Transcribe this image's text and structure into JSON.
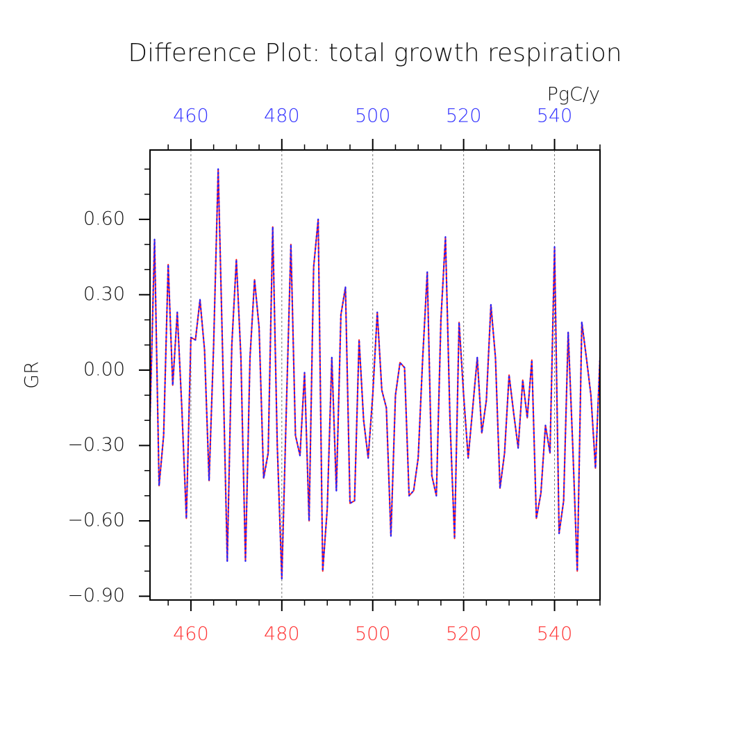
{
  "chart_data": {
    "type": "line",
    "title": "Difference Plot: total growth respiration",
    "units": "PgC/y",
    "y_label": "GR",
    "x": [
      451,
      452,
      453,
      454,
      455,
      456,
      457,
      458,
      459,
      460,
      461,
      462,
      463,
      464,
      465,
      466,
      467,
      468,
      469,
      470,
      471,
      472,
      473,
      474,
      475,
      476,
      477,
      478,
      479,
      480,
      481,
      482,
      483,
      484,
      485,
      486,
      487,
      488,
      489,
      490,
      491,
      492,
      493,
      494,
      495,
      496,
      497,
      498,
      499,
      500,
      501,
      502,
      503,
      504,
      505,
      506,
      507,
      508,
      509,
      510,
      511,
      512,
      513,
      514,
      515,
      516,
      517,
      518,
      519,
      520,
      521,
      522,
      523,
      524,
      525,
      526,
      527,
      528,
      529,
      530,
      531,
      532,
      533,
      534,
      535,
      536,
      537,
      538,
      539,
      540,
      541,
      542,
      543,
      544,
      545,
      546,
      547,
      548,
      549,
      550
    ],
    "series": [
      {
        "color": "#ff2020",
        "dash": "solid",
        "values": [
          -0.2,
          0.52,
          -0.46,
          -0.26,
          0.42,
          -0.06,
          0.23,
          -0.15,
          -0.59,
          0.13,
          0.12,
          0.28,
          0.08,
          -0.44,
          0.1,
          0.8,
          0.05,
          -0.76,
          0.1,
          0.44,
          0.05,
          -0.76,
          0.05,
          0.36,
          0.17,
          -0.43,
          -0.33,
          0.57,
          -0.3,
          -0.83,
          -0.15,
          0.5,
          -0.26,
          -0.34,
          -0.01,
          -0.6,
          0.41,
          0.6,
          -0.8,
          -0.55,
          0.05,
          -0.48,
          0.22,
          0.33,
          -0.53,
          -0.52,
          0.12,
          -0.2,
          -0.35,
          -0.1,
          0.23,
          -0.08,
          -0.15,
          -0.66,
          -0.1,
          0.03,
          0.01,
          -0.5,
          -0.48,
          -0.35,
          0.05,
          0.39,
          -0.42,
          -0.5,
          0.2,
          0.53,
          -0.2,
          -0.67,
          0.19,
          -0.1,
          -0.35,
          -0.15,
          0.05,
          -0.25,
          -0.12,
          0.26,
          0.05,
          -0.47,
          -0.33,
          -0.02,
          -0.17,
          -0.31,
          -0.04,
          -0.19,
          0.04,
          -0.59,
          -0.49,
          -0.22,
          -0.33,
          0.49,
          -0.65,
          -0.52,
          0.15,
          -0.3,
          -0.8,
          0.19,
          0.05,
          -0.1,
          -0.39,
          0.05
        ]
      },
      {
        "color": "#2020ff",
        "dash": "dotted",
        "values": [
          -0.2,
          0.52,
          -0.46,
          -0.26,
          0.42,
          -0.06,
          0.23,
          -0.15,
          -0.59,
          0.13,
          0.12,
          0.28,
          0.08,
          -0.44,
          0.1,
          0.8,
          0.05,
          -0.76,
          0.1,
          0.44,
          0.05,
          -0.76,
          0.05,
          0.36,
          0.17,
          -0.43,
          -0.33,
          0.57,
          -0.3,
          -0.83,
          -0.15,
          0.5,
          -0.26,
          -0.34,
          -0.01,
          -0.6,
          0.41,
          0.6,
          -0.8,
          -0.55,
          0.05,
          -0.48,
          0.22,
          0.33,
          -0.53,
          -0.52,
          0.12,
          -0.2,
          -0.35,
          -0.1,
          0.23,
          -0.08,
          -0.15,
          -0.66,
          -0.1,
          0.03,
          0.01,
          -0.5,
          -0.48,
          -0.35,
          0.05,
          0.39,
          -0.42,
          -0.5,
          0.2,
          0.53,
          -0.2,
          -0.67,
          0.19,
          -0.1,
          -0.35,
          -0.15,
          0.05,
          -0.25,
          -0.12,
          0.26,
          0.05,
          -0.47,
          -0.33,
          -0.02,
          -0.17,
          -0.31,
          -0.04,
          -0.19,
          0.04,
          -0.59,
          -0.49,
          -0.22,
          -0.33,
          0.49,
          -0.65,
          -0.52,
          0.15,
          -0.3,
          -0.8,
          0.19,
          0.05,
          -0.1,
          -0.39,
          0.05
        ]
      }
    ],
    "xlim": [
      451,
      550
    ],
    "xticks": [
      460,
      480,
      500,
      520,
      540
    ],
    "xminorticks": [
      455,
      460,
      465,
      470,
      475,
      480,
      485,
      490,
      495,
      500,
      505,
      510,
      515,
      520,
      525,
      530,
      535,
      540,
      545,
      550
    ],
    "bottom_tick_color": "#ff3333",
    "top_tick_color": "#3333ff",
    "ylim": [
      -0.915,
      0.876
    ],
    "yticks": [
      {
        "value": -0.9,
        "label": "−0.90"
      },
      {
        "value": -0.6,
        "label": "−0.60"
      },
      {
        "value": -0.3,
        "label": "−0.30"
      },
      {
        "value": 0,
        "label": "0.00"
      },
      {
        "value": 0.3,
        "label": "0.30"
      },
      {
        "value": 0.6,
        "label": "0.60"
      }
    ],
    "yminorticks": [
      -0.9,
      -0.8,
      -0.7,
      -0.6,
      -0.5,
      -0.4,
      -0.3,
      -0.2,
      -0.1,
      0,
      0.1,
      0.2,
      0.3,
      0.4,
      0.5,
      0.6,
      0.7,
      0.8
    ],
    "grid": "x"
  }
}
